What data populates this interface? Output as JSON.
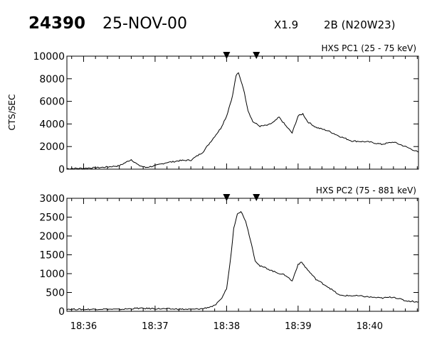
{
  "header": {
    "event_id": "24390",
    "date": "25-NOV-00",
    "class": "X1.9",
    "optical": "2B (N20W23)"
  },
  "chart_data": [
    {
      "type": "line",
      "title": "HXS PC1 (25 - 75 keV)",
      "ylabel": "CTS/SEC",
      "xlabel": "",
      "xlim": [
        "18:35:46",
        "18:40:41"
      ],
      "ylim": [
        0,
        10000
      ],
      "y_ticks": [
        0,
        2000,
        4000,
        6000,
        8000,
        10000
      ],
      "x_ticks": [
        "18:36",
        "18:37",
        "18:38",
        "18:39",
        "18:40"
      ],
      "grid": false,
      "markers": [
        "18:38:00",
        "18:38:25"
      ],
      "series": [
        {
          "x": [
            "18:35:46",
            "18:36:00",
            "18:36:15",
            "18:36:30",
            "18:36:40",
            "18:36:46",
            "18:36:52",
            "18:37:00",
            "18:37:10",
            "18:37:15",
            "18:37:20",
            "18:37:30",
            "18:37:40",
            "18:37:45",
            "18:37:50",
            "18:37:55",
            "18:38:00",
            "18:38:05",
            "18:38:08",
            "18:38:10",
            "18:38:14",
            "18:38:18",
            "18:38:22",
            "18:38:28",
            "18:38:35",
            "18:38:40",
            "18:38:44",
            "18:38:50",
            "18:38:55",
            "18:39:00",
            "18:39:04",
            "18:39:08",
            "18:39:15",
            "18:39:25",
            "18:39:35",
            "18:39:45",
            "18:40:00",
            "18:40:10",
            "18:40:20",
            "18:40:30",
            "18:40:41"
          ],
          "values": [
            50,
            80,
            150,
            300,
            850,
            350,
            150,
            300,
            600,
            650,
            750,
            800,
            1500,
            2200,
            2900,
            3600,
            4700,
            6500,
            8300,
            8500,
            7200,
            5200,
            4200,
            3800,
            3900,
            4200,
            4600,
            3800,
            3200,
            4700,
            4900,
            4200,
            3700,
            3400,
            2900,
            2500,
            2400,
            2200,
            2400,
            2000,
            1500
          ]
        }
      ]
    },
    {
      "type": "line",
      "title": "HXS PC2 (75 - 881 keV)",
      "ylabel": "",
      "xlabel": "",
      "xlim": [
        "18:35:46",
        "18:40:41"
      ],
      "ylim": [
        0,
        3000
      ],
      "y_ticks": [
        0,
        500,
        1000,
        1500,
        2000,
        2500,
        3000
      ],
      "x_ticks": [
        "18:36",
        "18:37",
        "18:38",
        "18:39",
        "18:40"
      ],
      "grid": false,
      "markers": [
        "18:38:00",
        "18:38:25"
      ],
      "series": [
        {
          "x": [
            "18:35:46",
            "18:36:00",
            "18:36:15",
            "18:36:30",
            "18:36:45",
            "18:37:00",
            "18:37:15",
            "18:37:30",
            "18:37:40",
            "18:37:50",
            "18:37:55",
            "18:38:00",
            "18:38:03",
            "18:38:06",
            "18:38:09",
            "18:38:12",
            "18:38:16",
            "18:38:20",
            "18:38:24",
            "18:38:28",
            "18:38:33",
            "18:38:40",
            "18:38:50",
            "18:38:55",
            "18:39:00",
            "18:39:03",
            "18:39:08",
            "18:39:15",
            "18:39:25",
            "18:39:35",
            "18:39:50",
            "18:40:00",
            "18:40:10",
            "18:40:20",
            "18:40:30",
            "18:40:41"
          ],
          "values": [
            60,
            50,
            60,
            50,
            80,
            70,
            60,
            50,
            70,
            150,
            300,
            600,
            1300,
            2200,
            2600,
            2650,
            2400,
            1900,
            1350,
            1200,
            1150,
            1050,
            950,
            800,
            1250,
            1300,
            1100,
            850,
            650,
            420,
            410,
            380,
            350,
            380,
            280,
            250
          ]
        }
      ]
    }
  ]
}
